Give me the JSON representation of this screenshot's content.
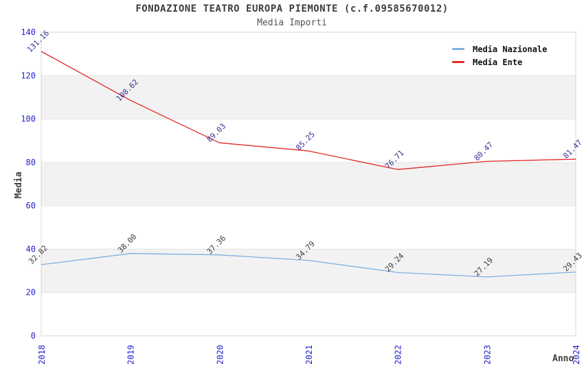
{
  "chart_data": {
    "type": "line",
    "title": "FONDAZIONE TEATRO EUROPA PIEMONTE (c.f.09585670012)",
    "subtitle": "Media Importi",
    "xlabel": "Anno",
    "ylabel": "Media",
    "categories": [
      "2018",
      "2019",
      "2020",
      "2021",
      "2022",
      "2023",
      "2024"
    ],
    "yticks": [
      0,
      20,
      40,
      60,
      80,
      100,
      120,
      140
    ],
    "ylim": [
      0,
      140
    ],
    "shaded_bands": [
      [
        20,
        40
      ],
      [
        60,
        80
      ],
      [
        100,
        120
      ]
    ],
    "grid": "horizontal gridlines every 20 units, alternating light-gray bands",
    "legend_position": "top-right",
    "value_label_decimals": 2,
    "series": [
      {
        "name": "Media Nazionale",
        "color": "#7fb0e0",
        "label_color": "#3c3c3c",
        "values": [
          32.82,
          38.0,
          37.36,
          34.79,
          29.24,
          27.19,
          29.43
        ]
      },
      {
        "name": "Media Ente",
        "color": "#e02828",
        "label_color": "#323296",
        "values": [
          131.16,
          108.62,
          89.03,
          85.25,
          76.71,
          80.47,
          81.47
        ]
      }
    ],
    "colors": {
      "tick_labels": "#2323cc",
      "band": "#f2f2f2",
      "gridline": "#e4e4e4",
      "plot_border": "#d4d4d4"
    }
  }
}
